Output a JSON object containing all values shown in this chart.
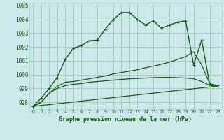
{
  "background_color": "#cce8e8",
  "grid_color": "#aacccc",
  "line_color": "#1a5c1a",
  "title": "Graphe pression niveau de la mer (hPa)",
  "xlim": [
    -0.5,
    23.5
  ],
  "ylim": [
    997.5,
    1005.2
  ],
  "yticks": [
    998,
    999,
    1000,
    1001,
    1002,
    1003,
    1004,
    1005
  ],
  "xticks": [
    0,
    1,
    2,
    3,
    4,
    5,
    6,
    7,
    8,
    9,
    10,
    11,
    12,
    13,
    14,
    15,
    16,
    17,
    18,
    19,
    20,
    21,
    22,
    23
  ],
  "series": [
    {
      "x": [
        0,
        1,
        2,
        3,
        4,
        5,
        6,
        7,
        8,
        9,
        10,
        11,
        12,
        13,
        14,
        15,
        16,
        17,
        18,
        19,
        20,
        21,
        22,
        23
      ],
      "y": [
        997.7,
        998.3,
        999.0,
        999.8,
        1001.1,
        1001.9,
        1002.1,
        1002.45,
        1002.5,
        1003.3,
        1004.0,
        1004.5,
        1004.5,
        1004.0,
        1003.6,
        1003.9,
        1003.35,
        1003.6,
        1003.8,
        1003.9,
        1000.7,
        1002.5,
        999.3,
        999.2
      ],
      "marker": true,
      "linewidth": 1.0,
      "markersize": 2.5
    },
    {
      "x": [
        0,
        1,
        2,
        3,
        4,
        5,
        6,
        7,
        8,
        9,
        10,
        11,
        12,
        13,
        14,
        15,
        16,
        17,
        18,
        19,
        20,
        21,
        22,
        23
      ],
      "y": [
        997.7,
        998.0,
        998.65,
        999.15,
        999.45,
        999.5,
        999.6,
        999.7,
        999.8,
        999.9,
        1000.05,
        1000.15,
        1000.25,
        1000.35,
        1000.5,
        1000.62,
        1000.75,
        1000.9,
        1001.1,
        1001.3,
        1001.65,
        1000.7,
        999.35,
        999.2
      ],
      "marker": false,
      "linewidth": 0.9
    },
    {
      "x": [
        0,
        1,
        2,
        3,
        4,
        5,
        6,
        7,
        8,
        9,
        10,
        11,
        12,
        13,
        14,
        15,
        16,
        17,
        18,
        19,
        20,
        21,
        22,
        23
      ],
      "y": [
        997.7,
        998.0,
        998.65,
        999.0,
        999.2,
        999.3,
        999.35,
        999.45,
        999.5,
        999.55,
        999.6,
        999.65,
        999.7,
        999.72,
        999.75,
        999.78,
        999.8,
        999.8,
        999.78,
        999.75,
        999.7,
        999.5,
        999.22,
        999.17
      ],
      "marker": false,
      "linewidth": 0.9
    },
    {
      "x": [
        0,
        23
      ],
      "y": [
        997.7,
        999.17
      ],
      "marker": false,
      "linewidth": 0.9
    }
  ]
}
